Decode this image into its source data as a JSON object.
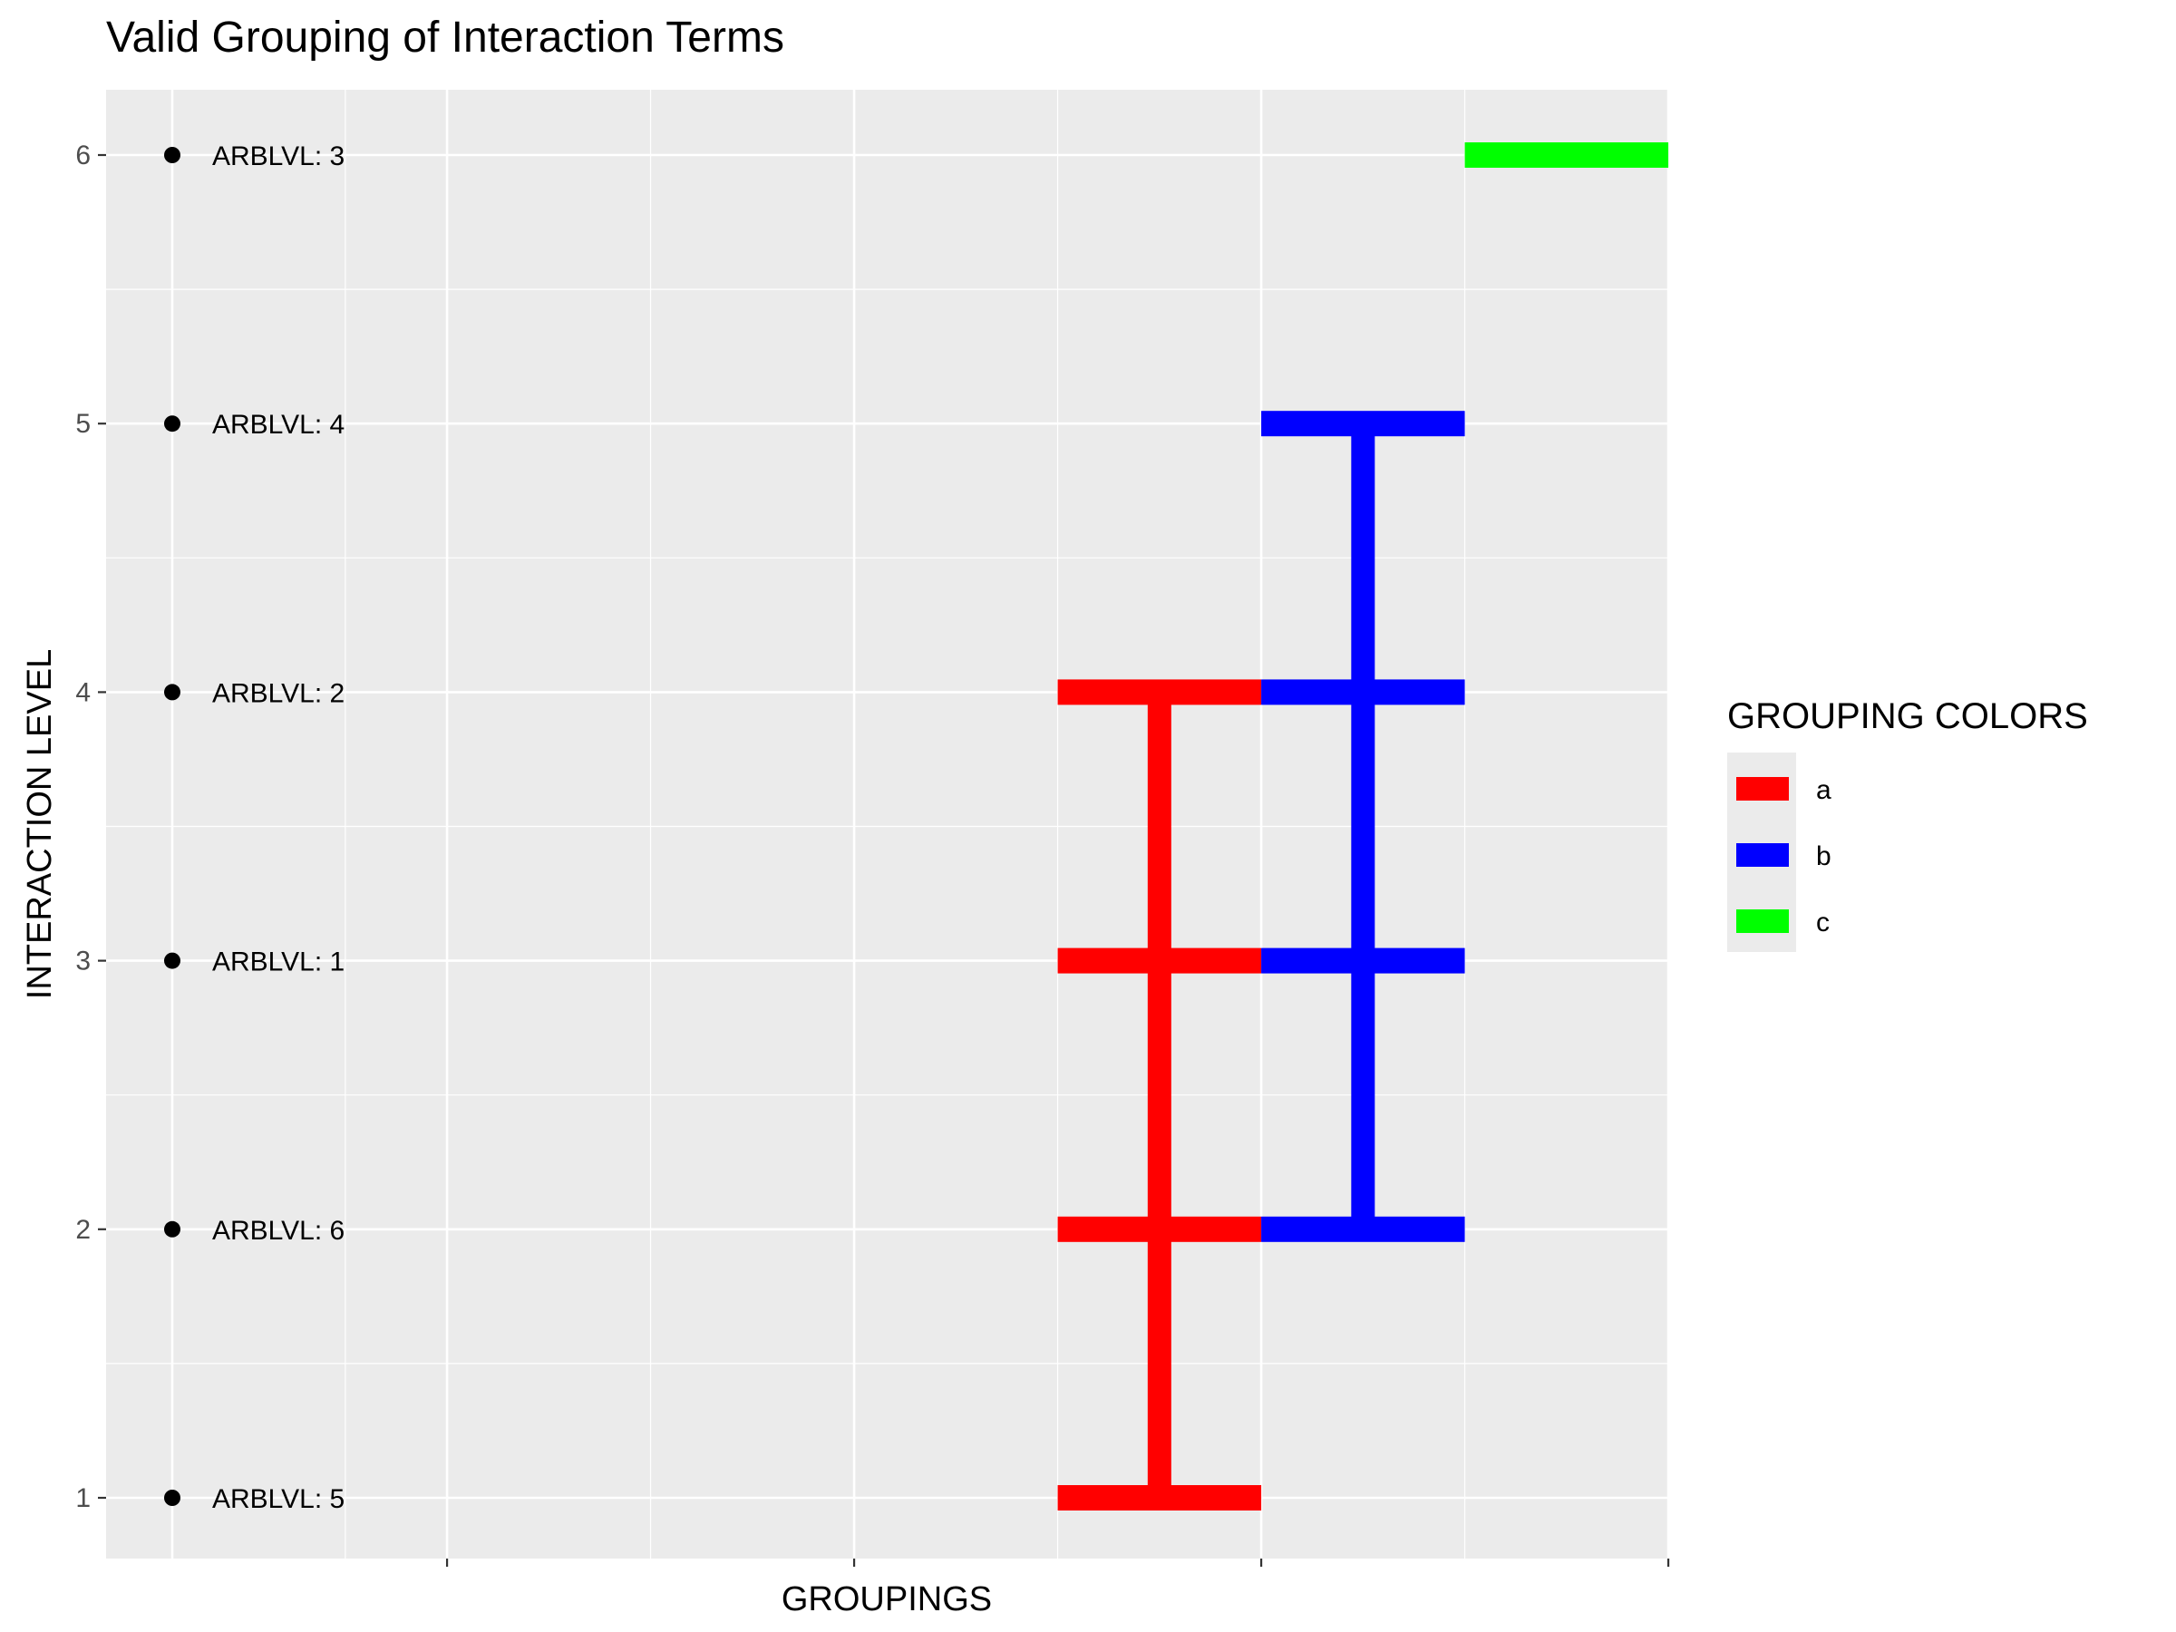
{
  "chart_data": {
    "type": "segment",
    "title": "Valid Grouping of Interaction Terms",
    "xlabel": "GROUPINGS",
    "ylabel": "INTERACTION LEVEL",
    "xlim": [
      0.5,
      8.2
    ],
    "ylim": [
      0.75,
      6.25
    ],
    "x_ticks": [
      1,
      3,
      5,
      7
    ],
    "x_minor_gridlines": [
      0.5,
      2,
      4,
      6,
      8
    ],
    "y_ticks": [
      1,
      2,
      3,
      4,
      5,
      6
    ],
    "y_tick_labels": [
      "1",
      "2",
      "3",
      "4",
      "5",
      "6"
    ],
    "grid": true,
    "panel_background": "#EBEBEB",
    "points": [
      {
        "x": -0.35,
        "y": 6,
        "label": "ARBLVL: 3"
      },
      {
        "x": -0.35,
        "y": 5,
        "label": "ARBLVL: 4"
      },
      {
        "x": -0.35,
        "y": 4,
        "label": "ARBLVL: 2"
      },
      {
        "x": -0.35,
        "y": 3,
        "label": "ARBLVL: 1"
      },
      {
        "x": -0.35,
        "y": 2,
        "label": "ARBLVL: 6"
      },
      {
        "x": -0.35,
        "y": 1,
        "label": "ARBLVL: 5"
      }
    ],
    "series": [
      {
        "name": "a",
        "color": "#FF0000",
        "horizontal_segments": [
          {
            "y": 1,
            "x_start": 4,
            "x_end": 5
          },
          {
            "y": 2,
            "x_start": 4,
            "x_end": 5
          },
          {
            "y": 3,
            "x_start": 4,
            "x_end": 5
          },
          {
            "y": 4,
            "x_start": 4,
            "x_end": 5
          }
        ],
        "vertical_segments": [
          {
            "x": 4.5,
            "y_start": 1,
            "y_end": 4
          }
        ]
      },
      {
        "name": "b",
        "color": "#0000FF",
        "horizontal_segments": [
          {
            "y": 2,
            "x_start": 5,
            "x_end": 6
          },
          {
            "y": 3,
            "x_start": 5,
            "x_end": 6
          },
          {
            "y": 4,
            "x_start": 5,
            "x_end": 6
          },
          {
            "y": 5,
            "x_start": 5,
            "x_end": 6
          }
        ],
        "vertical_segments": [
          {
            "x": 5.5,
            "y_start": 2,
            "y_end": 5
          }
        ]
      },
      {
        "name": "c",
        "color": "#00FF00",
        "horizontal_segments": [
          {
            "y": 6,
            "x_start": 6,
            "x_end": 7
          }
        ],
        "vertical_segments": []
      }
    ],
    "legend": {
      "title": "GROUPING COLORS",
      "position": "right",
      "entries": [
        "a",
        "b",
        "c"
      ]
    }
  }
}
